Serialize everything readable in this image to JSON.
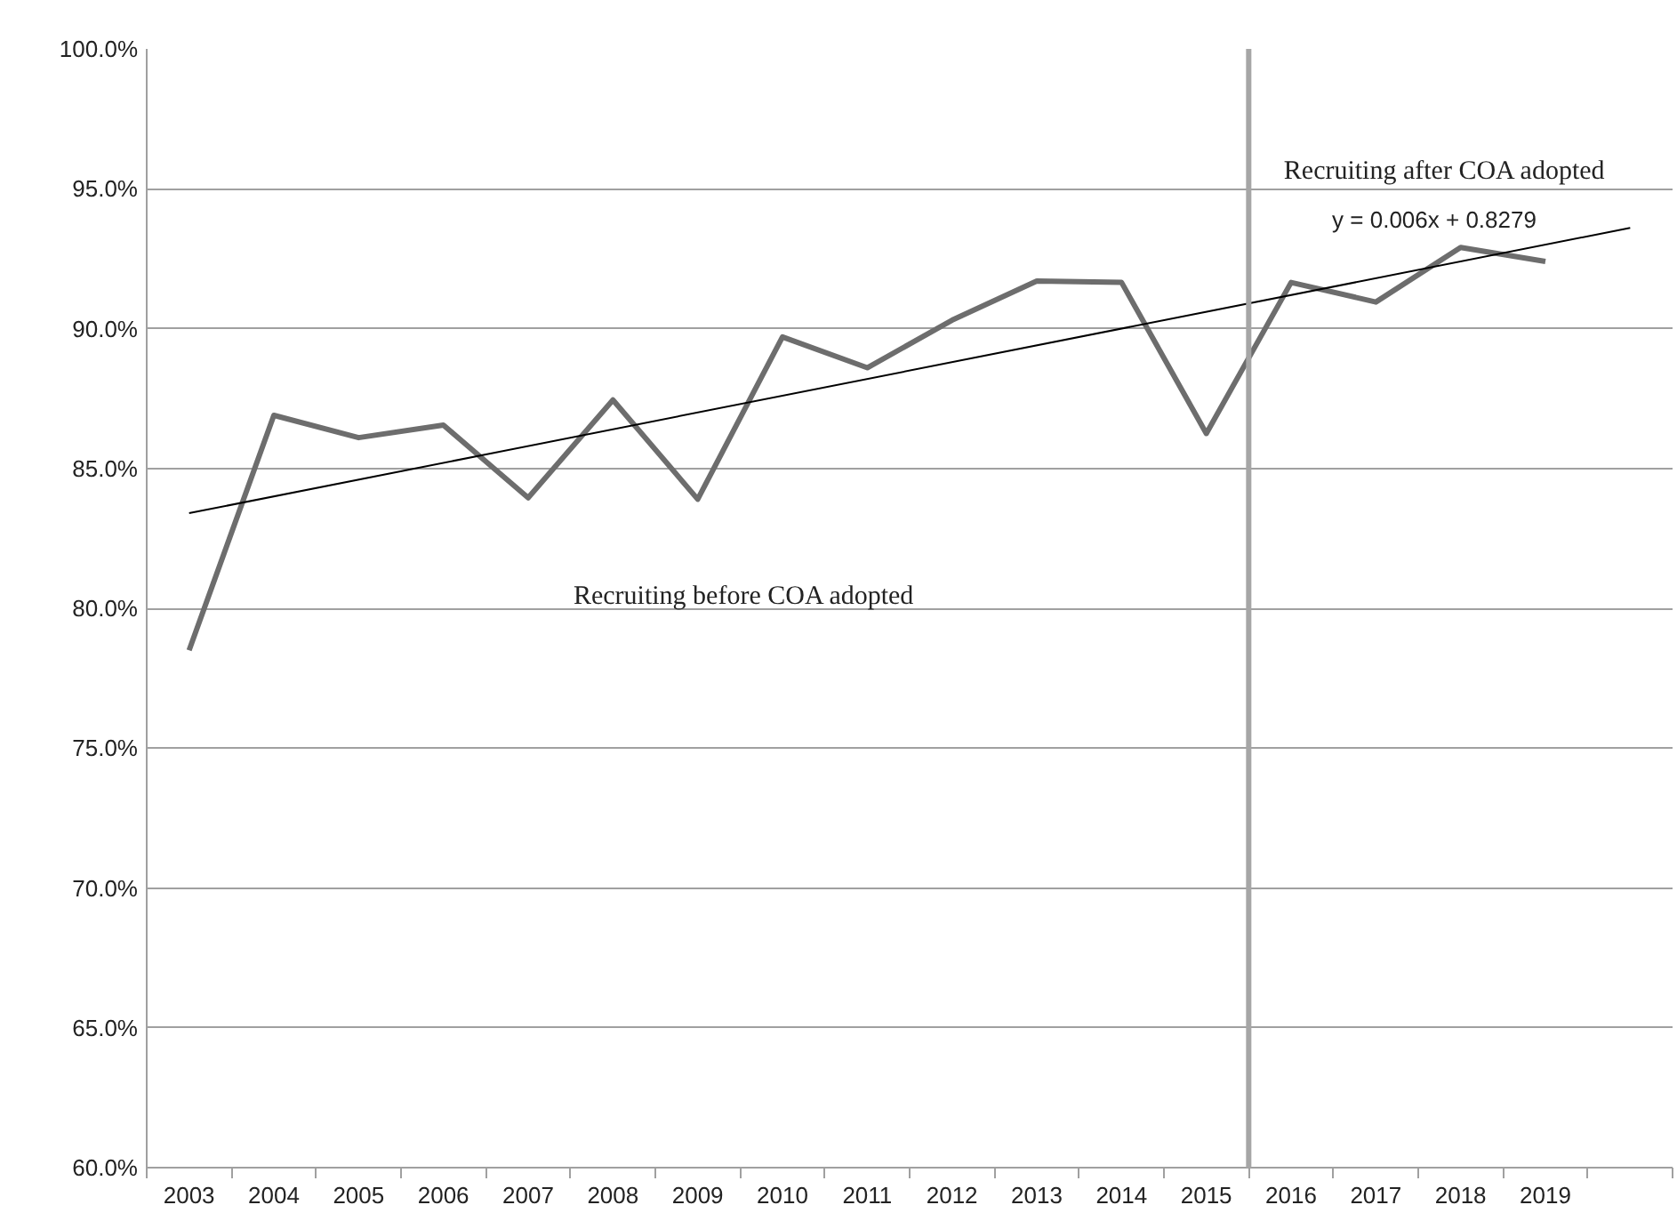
{
  "chart_data": {
    "type": "line",
    "x": [
      2003,
      2004,
      2005,
      2006,
      2007,
      2008,
      2009,
      2010,
      2011,
      2012,
      2013,
      2014,
      2015,
      2016,
      2017,
      2018,
      2019
    ],
    "series": [
      {
        "color": "#6d6d6d",
        "values": [
          78.5,
          86.9,
          86.1,
          86.55,
          83.95,
          87.45,
          83.9,
          89.7,
          88.6,
          90.3,
          91.7,
          91.65,
          86.25,
          91.65,
          90.95,
          92.9,
          92.4
        ]
      },
      {
        "type": "line",
        "color": "#000000",
        "x": [
          2003,
          2020
        ],
        "values": [
          83.4,
          93.6
        ]
      }
    ],
    "xlim": [
      2002.5,
      2020.5
    ],
    "xticks": [
      2003,
      2004,
      2005,
      2006,
      2007,
      2008,
      2009,
      2010,
      2011,
      2012,
      2013,
      2014,
      2015,
      2016,
      2017,
      2018,
      2019,
      {
        "value": 2002.5,
        "label": null
      },
      {
        "value": 2003.5,
        "label": null
      },
      {
        "value": 2004.5,
        "label": null
      },
      {
        "value": 2005.5,
        "label": null
      },
      {
        "value": 2006.5,
        "label": null
      },
      {
        "value": 2007.5,
        "label": null
      },
      {
        "value": 2008.5,
        "label": null
      },
      {
        "value": 2009.5,
        "label": null
      },
      {
        "value": 2010.5,
        "label": null
      },
      {
        "value": 2011.5,
        "label": null
      },
      {
        "value": 2012.5,
        "label": null
      },
      {
        "value": 2013.5,
        "label": null
      },
      {
        "value": 2014.5,
        "label": null
      },
      {
        "value": 2015.5,
        "label": null
      },
      {
        "value": 2016.5,
        "label": null
      },
      {
        "value": 2017.5,
        "label": null
      },
      {
        "value": 2018.5,
        "label": null
      },
      {
        "value": 2019.5,
        "label": null
      },
      {
        "value": 2020.5,
        "label": null
      }
    ],
    "ylim": [
      60,
      100
    ],
    "yticks": [
      {
        "value": 60,
        "label": "60.0%"
      },
      {
        "value": 65,
        "label": "65.0%"
      },
      {
        "value": 70,
        "label": "70.0%"
      },
      {
        "value": 75,
        "label": "75.0%"
      },
      {
        "value": 80,
        "label": "80.0%"
      },
      {
        "value": 85,
        "label": "85.0%"
      },
      {
        "value": 90,
        "label": "90.0%"
      },
      {
        "value": 95,
        "label": "95.0%"
      },
      {
        "value": 100,
        "label": "100.0%"
      }
    ],
    "grid": "y",
    "marker": "none",
    "line_style": "solid",
    "ref_lines": [
      {
        "axis": "x",
        "value": 2015.5,
        "label": null,
        "color": "#a6a6a6"
      }
    ],
    "annotations": [
      "Recruiting before COA adopted",
      "Recruiting after COA adopted",
      "y = 0.006x + 0.8279"
    ]
  }
}
